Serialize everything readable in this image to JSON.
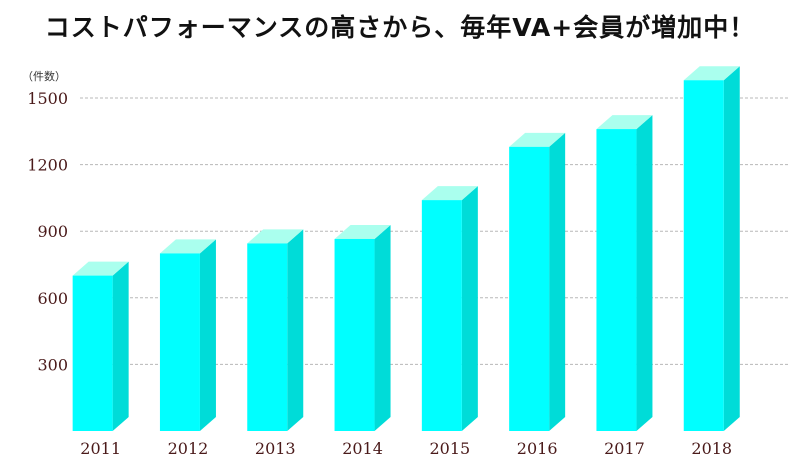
{
  "chart_data": {
    "type": "bar",
    "title": "コストパフォーマンスの高さから、毎年VA+会員が増加中！",
    "ylabel": "（件数）",
    "xlabel": "",
    "categories": [
      "2011",
      "2012",
      "2013",
      "2014",
      "2015",
      "2016",
      "2017",
      "2018"
    ],
    "values": [
      700,
      800,
      845,
      865,
      1040,
      1280,
      1360,
      1580
    ],
    "yticks": [
      300,
      600,
      900,
      1200,
      1500
    ],
    "ylim": [
      0,
      1620
    ],
    "grid": true,
    "colors": {
      "front": "#00ffff",
      "side": "#00dcd8",
      "top": "#aaffee"
    }
  }
}
